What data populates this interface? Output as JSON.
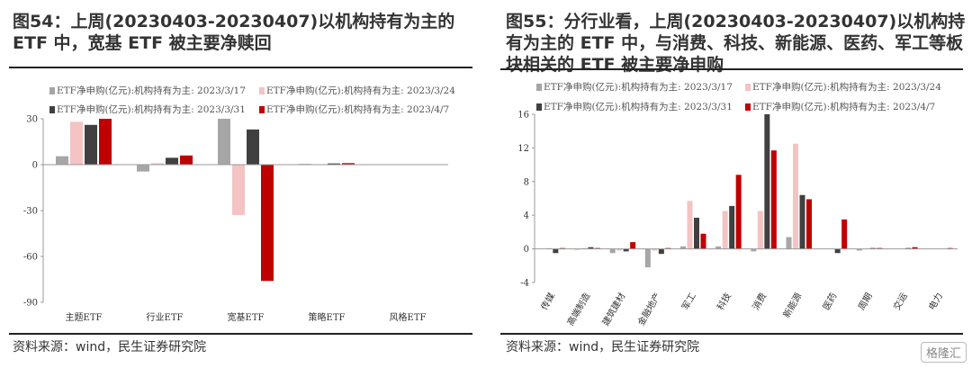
{
  "panels": [
    {
      "title": "图54：上周(20230403-20230407)以机构持有为主的 ETF 中，宽基 ETF 被主要净赎回",
      "source": "资料来源：wind，民生证券研究院"
    },
    {
      "title": "图55：分行业看，上周(20230403-20230407)以机构持有为主的 ETF 中，与消费、科技、新能源、医药、军工等板块相关的 ETF 被主要净申购",
      "source": "资料来源：wind，民生证券研究院"
    }
  ],
  "watermark": "格隆汇",
  "colors": {
    "s1": "#a6a6a6",
    "s2": "#f4c3c3",
    "s3": "#404040",
    "s4": "#c00000"
  },
  "chart_data": [
    {
      "type": "bar",
      "categories": [
        "主题ETF",
        "行业ETF",
        "宽基ETF",
        "策略ETF",
        "风格ETF"
      ],
      "ylim": [
        -90,
        30
      ],
      "yticks": [
        30,
        0,
        -30,
        -60,
        -90
      ],
      "legend_position": "top",
      "series": [
        {
          "name": "ETF净申购(亿元):机构持有为主: 2023/3/17",
          "values": [
            5.5,
            -4.5,
            30,
            0.5,
            0
          ]
        },
        {
          "name": "ETF净申购(亿元):机构持有为主: 2023/3/24",
          "values": [
            28,
            1,
            -33,
            0.3,
            0
          ]
        },
        {
          "name": "ETF净申购(亿元):机构持有为主: 2023/3/31",
          "values": [
            26,
            4.5,
            23,
            0.8,
            0
          ]
        },
        {
          "name": "ETF净申购(亿元):机构持有为主: 2023/4/7",
          "values": [
            30,
            6,
            -76,
            1,
            0
          ]
        }
      ]
    },
    {
      "type": "bar",
      "categories": [
        "传媒",
        "高端制造",
        "建筑建材",
        "金融地产",
        "军工",
        "科技",
        "消费",
        "新能源",
        "医药",
        "周期",
        "交运",
        "电力"
      ],
      "ylim": [
        -4,
        16
      ],
      "yticks": [
        16,
        12,
        8,
        4,
        0,
        -4
      ],
      "legend_position": "top",
      "series": [
        {
          "name": "ETF净申购(亿元):机构持有为主: 2023/3/17",
          "values": [
            0,
            -0.1,
            -0.5,
            -2.2,
            0.3,
            0.3,
            -0.3,
            1.4,
            0,
            -0.2,
            0,
            0
          ]
        },
        {
          "name": "ETF净申购(亿元):机构持有为主: 2023/3/24",
          "values": [
            0.1,
            0.1,
            -0.2,
            -0.2,
            5.7,
            4.5,
            4.5,
            12.5,
            0,
            0,
            0,
            0
          ]
        },
        {
          "name": "ETF净申购(亿元):机构持有为主: 2023/3/31",
          "values": [
            -0.5,
            0.2,
            -0.3,
            -0.6,
            3.7,
            5.1,
            16,
            6.4,
            -0.5,
            0.1,
            0.1,
            0
          ]
        },
        {
          "name": "ETF净申购(亿元):机构持有为主: 2023/4/7",
          "values": [
            0.1,
            0.1,
            0.8,
            0.1,
            1.8,
            8.8,
            11.7,
            5.9,
            3.5,
            0.1,
            0.2,
            0.1
          ]
        }
      ]
    }
  ]
}
